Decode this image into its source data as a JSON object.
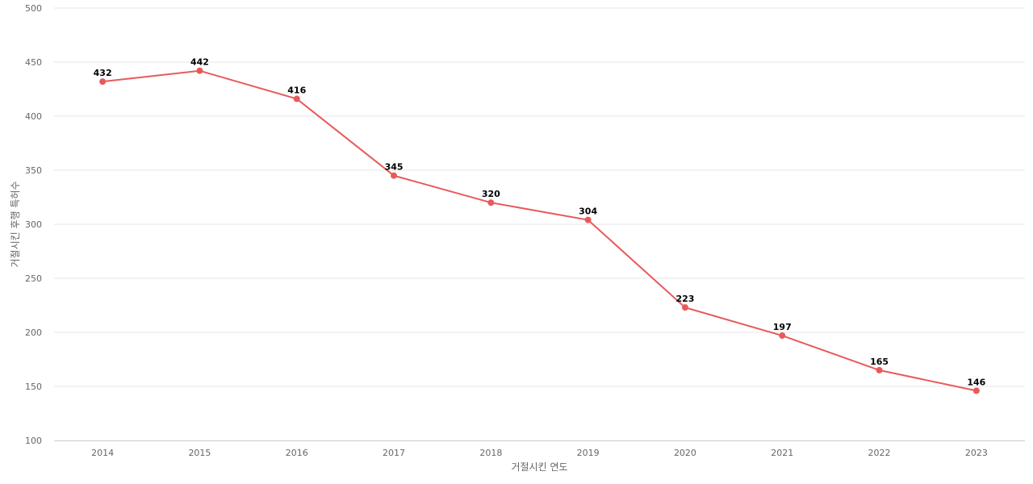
{
  "chart_data": {
    "type": "line",
    "title": "",
    "xlabel": "거절시킨 연도",
    "ylabel": "거절시킨 후행 특허수",
    "categories": [
      "2014",
      "2015",
      "2016",
      "2017",
      "2018",
      "2019",
      "2020",
      "2021",
      "2022",
      "2023"
    ],
    "series": [
      {
        "values": [
          432,
          442,
          416,
          345,
          320,
          304,
          223,
          197,
          165,
          146
        ]
      }
    ],
    "ylim": [
      100,
      500
    ],
    "yticks": [
      100,
      150,
      200,
      250,
      300,
      350,
      400,
      450,
      500
    ],
    "grid": true,
    "legend": "none",
    "colors": {
      "line": "#e85a5a"
    }
  }
}
